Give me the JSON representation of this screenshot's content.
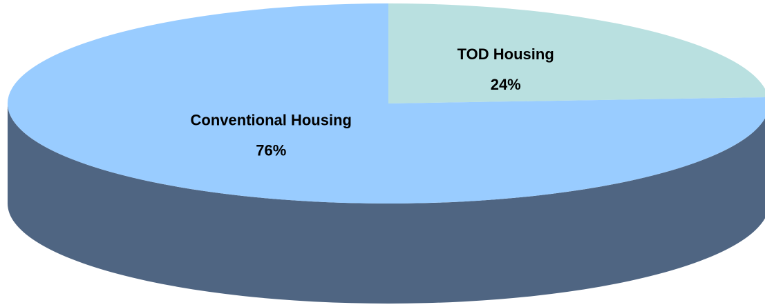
{
  "chart_data": {
    "type": "pie",
    "categories": [
      "TOD Housing",
      "Conventional Housing"
    ],
    "values": [
      24,
      76
    ],
    "value_labels": [
      "24%",
      "76%"
    ],
    "colors": [
      "#b9e0e0",
      "#99ccff"
    ],
    "side_color": "#4f6582"
  }
}
